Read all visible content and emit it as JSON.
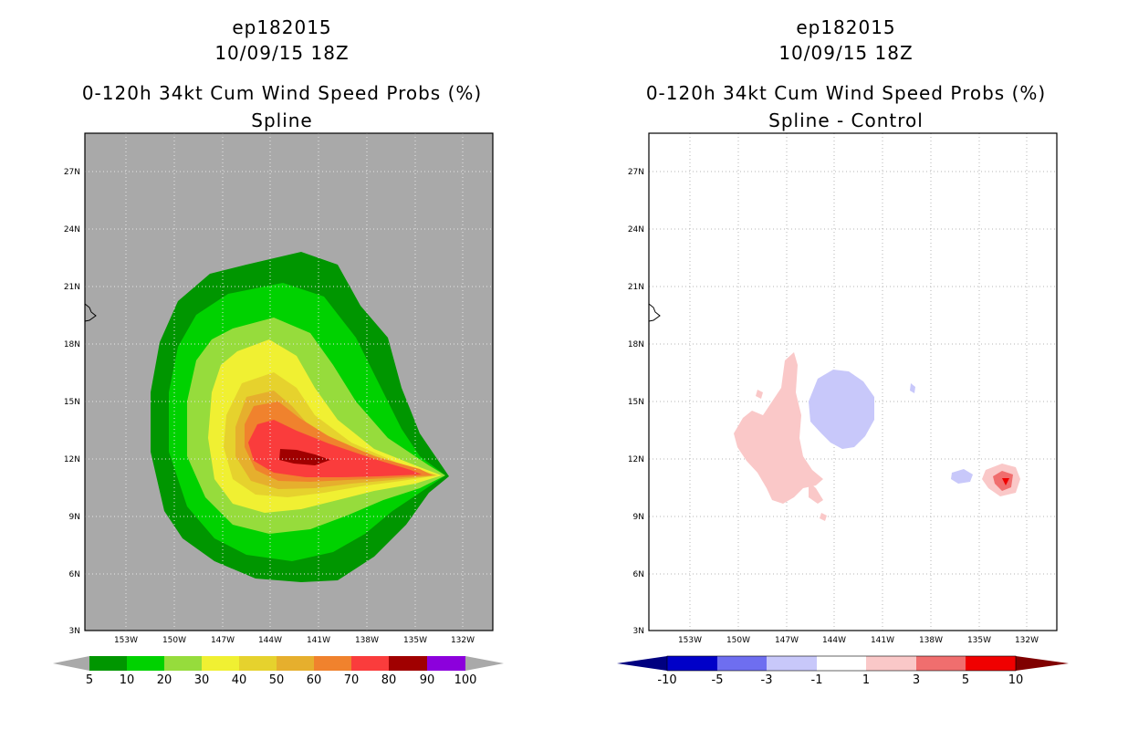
{
  "panels": [
    {
      "id": "left",
      "title_line1": "ep182015",
      "title_line2": "10/09/15 18Z",
      "title_line3": "0-120h 34kt Cum Wind Speed Probs (%)",
      "title_line4": "Spline"
    },
    {
      "id": "right",
      "title_line1": "ep182015",
      "title_line2": "10/09/15 18Z",
      "title_line3": "0-120h 34kt Cum Wind Speed Probs (%)",
      "title_line4": "Spline - Control"
    }
  ],
  "chart_data": [
    {
      "type": "heatmap",
      "title": "0-120h 34kt Cum Wind Speed Probs (%)",
      "subtitle": "Spline",
      "xlabel": "",
      "ylabel": "",
      "x_ticks": [
        "153W",
        "150W",
        "147W",
        "144W",
        "141W",
        "138W",
        "135W",
        "132W"
      ],
      "x_tick_lon": [
        -153,
        -150,
        -147,
        -144,
        -141,
        -138,
        -135,
        -132
      ],
      "y_ticks": [
        "3N",
        "6N",
        "9N",
        "12N",
        "15N",
        "18N",
        "21N",
        "24N",
        "27N"
      ],
      "y_tick_lat": [
        3,
        6,
        9,
        12,
        15,
        18,
        21,
        24,
        27
      ],
      "lon_range": [
        -155.2,
        -130.2
      ],
      "lat_range": [
        3,
        29
      ],
      "grid": true,
      "background_color": "#a9a9a9",
      "colorbar": {
        "labels": [
          "5",
          "10",
          "20",
          "30",
          "40",
          "50",
          "60",
          "70",
          "80",
          "90",
          "100"
        ],
        "colors": [
          "#009600",
          "#00d200",
          "#96dc3c",
          "#f0f032",
          "#e6d22d",
          "#e6af2d",
          "#f0822d",
          "#fa3c3c",
          "#a00000",
          "#8c00dc"
        ]
      }
    },
    {
      "type": "heatmap",
      "title": "0-120h 34kt Cum Wind Speed Probs (%)",
      "subtitle": "Spline - Control",
      "xlabel": "",
      "ylabel": "",
      "x_ticks": [
        "153W",
        "150W",
        "147W",
        "144W",
        "141W",
        "138W",
        "135W",
        "132W"
      ],
      "x_tick_lon": [
        -153,
        -150,
        -147,
        -144,
        -141,
        -138,
        -135,
        -132
      ],
      "y_ticks": [
        "3N",
        "6N",
        "9N",
        "12N",
        "15N",
        "18N",
        "21N",
        "24N",
        "27N"
      ],
      "y_tick_lat": [
        3,
        6,
        9,
        12,
        15,
        18,
        21,
        24,
        27
      ],
      "lon_range": [
        -155.2,
        -130.2
      ],
      "lat_range": [
        3,
        29
      ],
      "grid": true,
      "background_color": "#ffffff",
      "colorbar": {
        "labels": [
          "-10",
          "-5",
          "-3",
          "-1",
          "1",
          "3",
          "5",
          "10"
        ],
        "colors": [
          "#0000c8",
          "#6e6ef0",
          "#c8c8fa",
          "#ffffff",
          "#fac8c8",
          "#f06e6e",
          "#f00000"
        ]
      }
    }
  ]
}
